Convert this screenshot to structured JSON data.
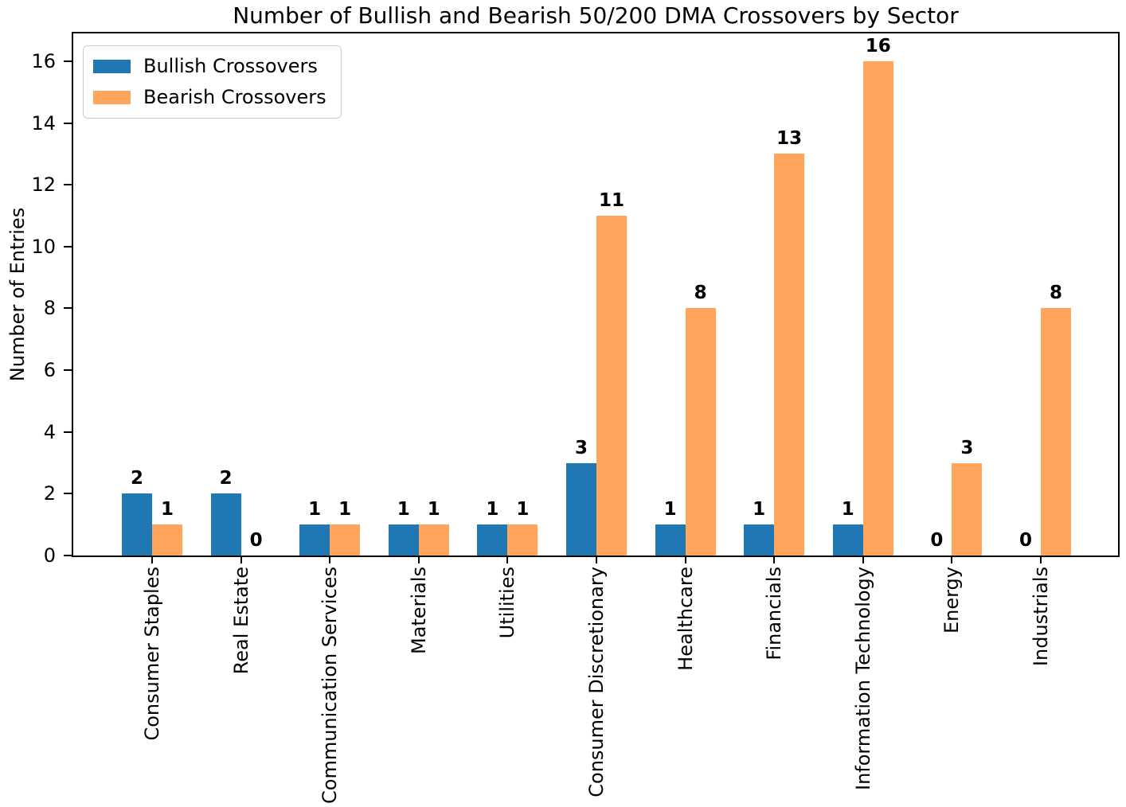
{
  "chart_data": {
    "type": "bar",
    "title": "Number of Bullish and Bearish 50/200 DMA Crossovers by Sector",
    "xlabel": "",
    "ylabel": "Number of Entries",
    "categories": [
      "Consumer Staples",
      "Real Estate",
      "Communication Services",
      "Materials",
      "Utilities",
      "Consumer Discretionary",
      "Healthcare",
      "Financials",
      "Information Technology",
      "Energy",
      "Industrials"
    ],
    "series": [
      {
        "name": "Bullish Crossovers",
        "color": "#1f77b4",
        "values": [
          2,
          2,
          1,
          1,
          1,
          3,
          1,
          1,
          1,
          0,
          0
        ]
      },
      {
        "name": "Bearish Crossovers",
        "color": "#ffa65c",
        "values": [
          1,
          0,
          1,
          1,
          1,
          11,
          8,
          13,
          16,
          3,
          8
        ]
      }
    ],
    "yticks": [
      0,
      2,
      4,
      6,
      8,
      10,
      12,
      14,
      16
    ],
    "ylim": [
      0,
      16.9
    ],
    "grid": false,
    "legend_position": "upper left",
    "bar_value_labels": true,
    "colors": {
      "axis": "#000000",
      "background": "#ffffff",
      "legend_border": "#cccccc"
    }
  }
}
